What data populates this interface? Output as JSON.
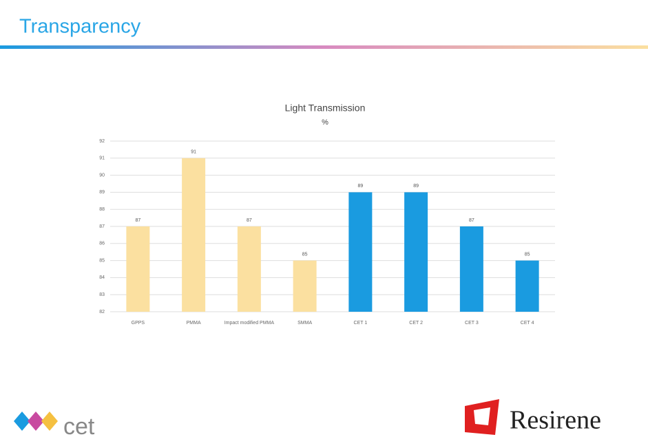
{
  "header": {
    "title": "Transparency"
  },
  "chart_data": {
    "type": "bar",
    "title": "Light Transmission",
    "subtitle": "%",
    "categories": [
      "GPPS",
      "PMMA",
      "Impact modified PMMA",
      "SMMA",
      "CET 1",
      "CET 2",
      "CET 3",
      "CET 4"
    ],
    "values": [
      87,
      91,
      87,
      85,
      89,
      89,
      87,
      85
    ],
    "colors": [
      "#fbe0a0",
      "#fbe0a0",
      "#fbe0a0",
      "#fbe0a0",
      "#1a9be0",
      "#1a9be0",
      "#1a9be0",
      "#1a9be0"
    ],
    "ylim": [
      82,
      92
    ],
    "yticks": [
      82,
      83,
      84,
      85,
      86,
      87,
      88,
      89,
      90,
      91,
      92
    ],
    "grid": true
  },
  "logos": {
    "left": "cet",
    "right": "Resirene"
  }
}
